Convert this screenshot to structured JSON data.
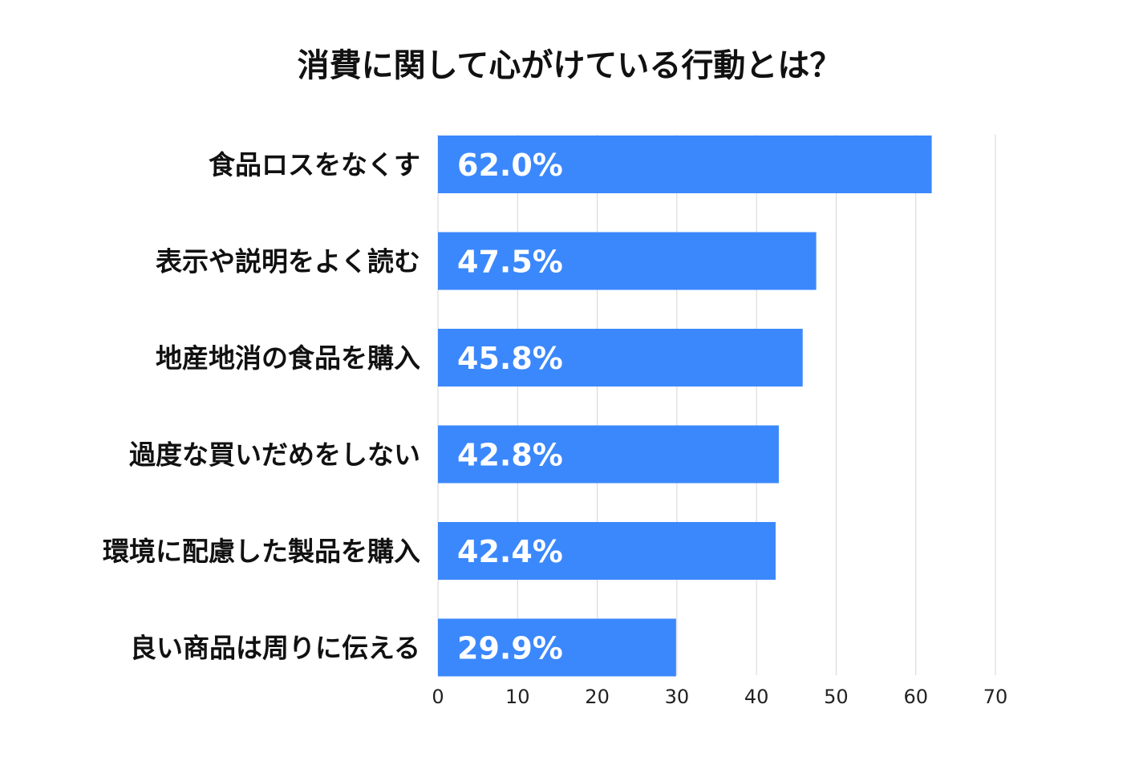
{
  "chart_data": {
    "type": "bar",
    "orientation": "horizontal",
    "title": "消費に関して心がけている行動とは？",
    "categories": [
      "食品ロスをなくす",
      "表示や説明をよく読む",
      "地産地消の食品を購入",
      "過度な買いだめをしない",
      "環境に配慮した製品を購入",
      "良い商品は周りに伝える"
    ],
    "values": [
      62.0,
      47.5,
      45.8,
      42.8,
      42.4,
      29.9
    ],
    "data_labels": [
      "62.0%",
      "47.5%",
      "45.8%",
      "42.8%",
      "42.4%",
      "29.9%"
    ],
    "xlim": [
      0,
      70
    ],
    "x_ticks": [
      "0",
      "10",
      "20",
      "30",
      "40",
      "50",
      "60",
      "70"
    ],
    "grid": "vertical",
    "bar_color": "#3B88FD",
    "label_color": "#ffffff"
  }
}
